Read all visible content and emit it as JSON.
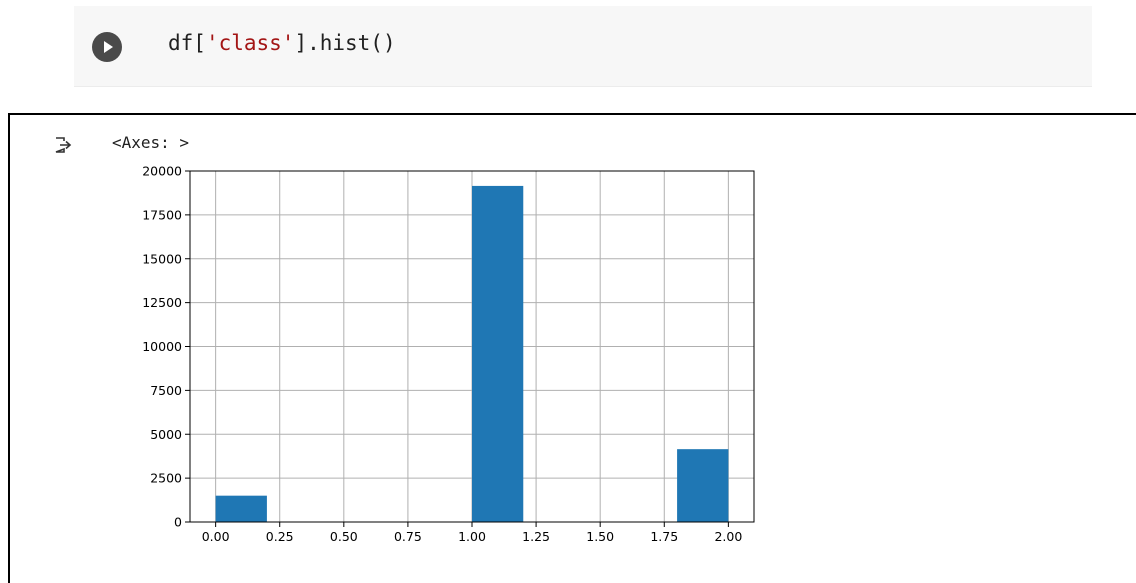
{
  "code_cell": {
    "run_button_icon": "play-icon",
    "code_prefix": "df[",
    "code_string": "'class'",
    "code_suffix": "].hist()"
  },
  "output": {
    "icon": "output-arrow-icon",
    "text": "<Axes: >"
  },
  "colors": {
    "bar": "#1f77b4",
    "grid": "#b0b0b0",
    "cell_background": "#f7f7f7",
    "run_button": "#4a4a4a"
  },
  "chart_data": {
    "type": "bar",
    "subtype": "histogram",
    "bins": [
      {
        "x0": 0.0,
        "x1": 0.2,
        "value": 1500
      },
      {
        "x0": 0.2,
        "x1": 0.4,
        "value": 0
      },
      {
        "x0": 0.4,
        "x1": 0.6,
        "value": 0
      },
      {
        "x0": 0.6,
        "x1": 0.8,
        "value": 0
      },
      {
        "x0": 0.8,
        "x1": 1.0,
        "value": 0
      },
      {
        "x0": 1.0,
        "x1": 1.2,
        "value": 19150
      },
      {
        "x0": 1.2,
        "x1": 1.4,
        "value": 0
      },
      {
        "x0": 1.4,
        "x1": 1.6,
        "value": 0
      },
      {
        "x0": 1.6,
        "x1": 1.8,
        "value": 0
      },
      {
        "x0": 1.8,
        "x1": 2.0,
        "value": 4150
      }
    ],
    "xlim": [
      -0.1,
      2.1
    ],
    "ylim": [
      0,
      20000
    ],
    "x_ticks": [
      0.0,
      0.25,
      0.5,
      0.75,
      1.0,
      1.25,
      1.5,
      1.75,
      2.0
    ],
    "x_tick_labels": [
      "0.00",
      "0.25",
      "0.50",
      "0.75",
      "1.00",
      "1.25",
      "1.50",
      "1.75",
      "2.00"
    ],
    "y_ticks": [
      0,
      2500,
      5000,
      7500,
      10000,
      12500,
      15000,
      17500,
      20000
    ],
    "y_tick_labels": [
      "0",
      "2500",
      "5000",
      "7500",
      "10000",
      "12500",
      "15000",
      "17500",
      "20000"
    ],
    "title": "",
    "xlabel": "",
    "ylabel": "",
    "grid": true,
    "legend": "none"
  }
}
